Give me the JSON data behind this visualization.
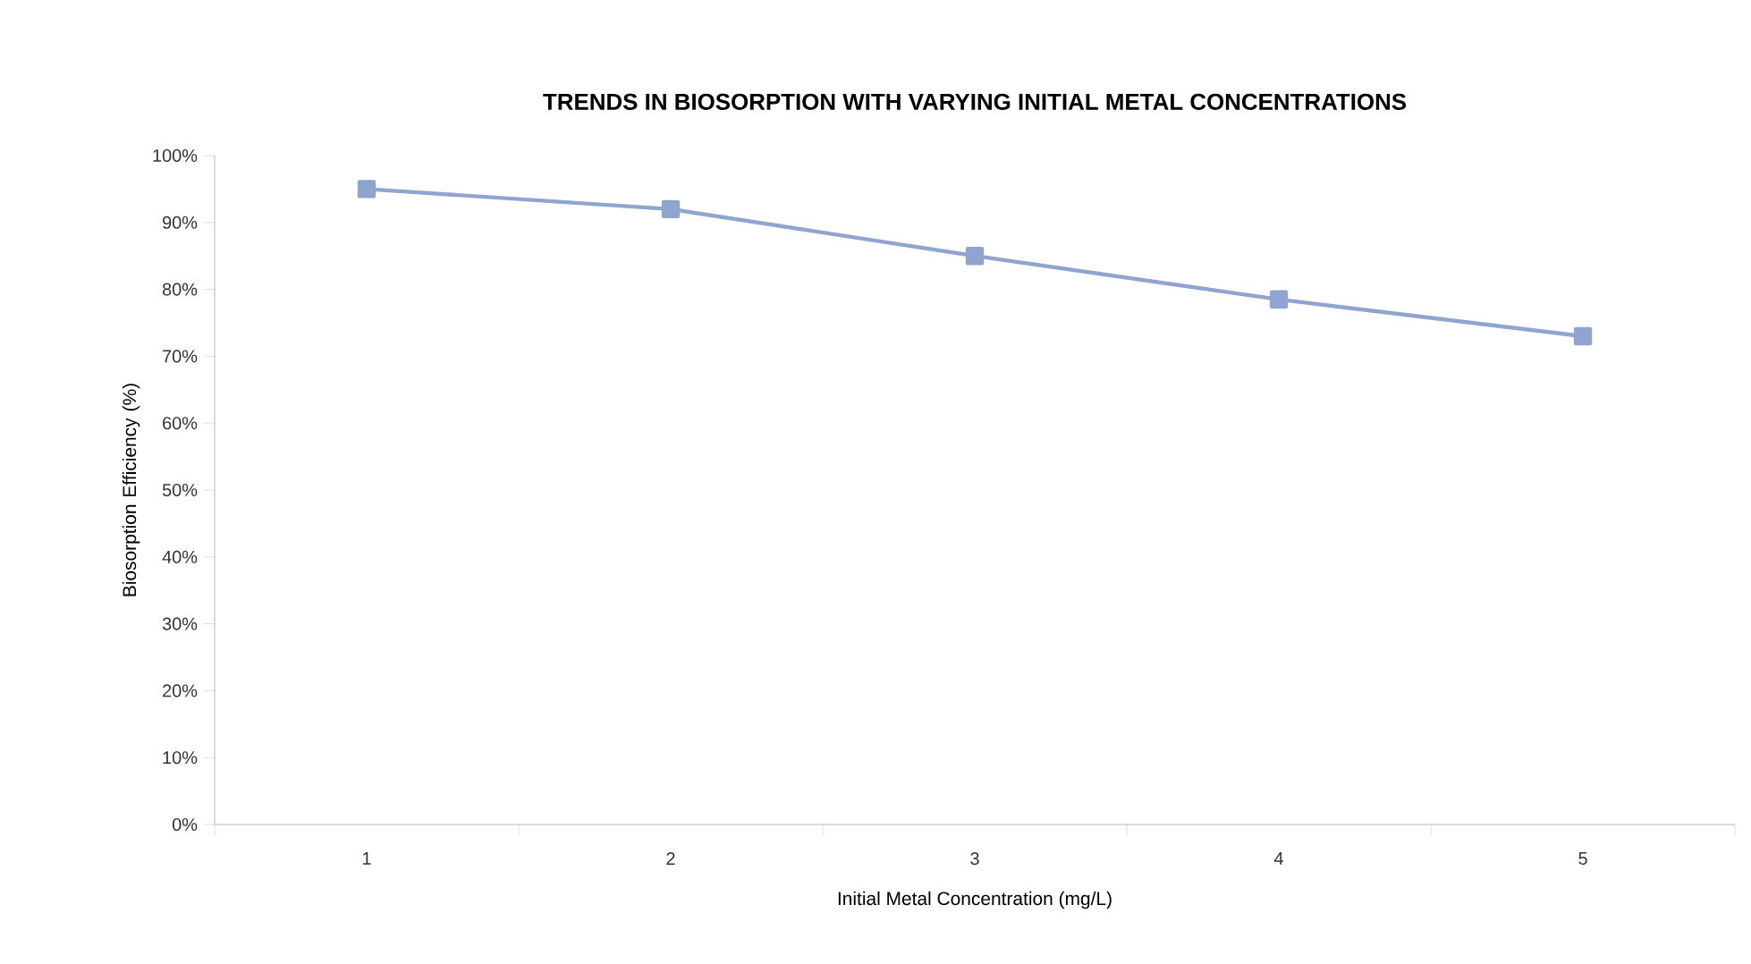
{
  "chart_data": {
    "type": "line",
    "title": "TRENDS IN BIOSORPTION WITH VARYING INITIAL METAL CONCENTRATIONS",
    "xlabel": "Initial Metal Concentration (mg/L)",
    "ylabel": "Biosorption Efficiency (%)",
    "categories": [
      "1",
      "2",
      "3",
      "4",
      "5"
    ],
    "series": [
      {
        "color": "#8fa5cf",
        "values": [
          95,
          92,
          85,
          78.5,
          73
        ]
      }
    ],
    "ylim": [
      0,
      100
    ],
    "yticks": [
      {
        "value": 0,
        "label": "0%"
      },
      {
        "value": 10,
        "label": "10%"
      },
      {
        "value": 20,
        "label": "20%"
      },
      {
        "value": 30,
        "label": "30%"
      },
      {
        "value": 40,
        "label": "40%"
      },
      {
        "value": 50,
        "label": "50%"
      },
      {
        "value": 60,
        "label": "60%"
      },
      {
        "value": 70,
        "label": "70%"
      },
      {
        "value": 80,
        "label": "80%"
      },
      {
        "value": 90,
        "label": "90%"
      },
      {
        "value": 100,
        "label": "100%"
      }
    ],
    "marker": "square",
    "line_style": "solid"
  }
}
